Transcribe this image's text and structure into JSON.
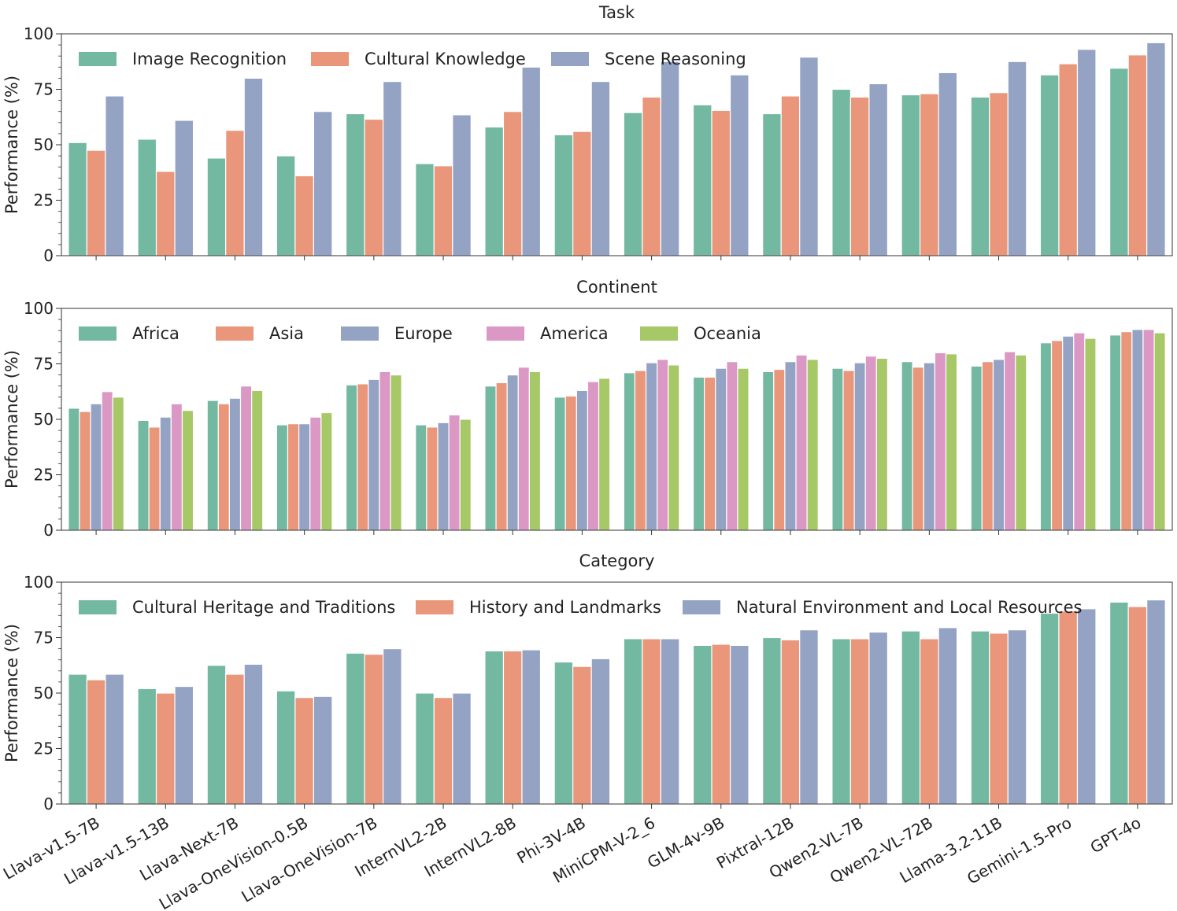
{
  "figure": {
    "models": [
      "Llava-v1.5-7B",
      "Llava-v1.5-13B",
      "Llava-Next-7B",
      "Llava-OneVision-0.5B",
      "Llava-OneVision-7B",
      "InternVL2-2B",
      "InternVL2-8B",
      "Phi-3V-4B",
      "MiniCPM-V-2_6",
      "GLM-4v-9B",
      "Pixtral-12B",
      "Qwen2-VL-7B",
      "Qwen2-VL-72B",
      "Llama-3.2-11B",
      "Gemini-1.5-Pro",
      "GPT-4o"
    ]
  },
  "chart_data": [
    {
      "type": "bar",
      "title": "Task",
      "xlabel": "",
      "ylabel": "Performance (%)",
      "ylim": [
        0,
        100
      ],
      "yticks": [
        0,
        25,
        50,
        75,
        100
      ],
      "legend_position": "top-left",
      "categories": [
        "Llava-v1.5-7B",
        "Llava-v1.5-13B",
        "Llava-Next-7B",
        "Llava-OneVision-0.5B",
        "Llava-OneVision-7B",
        "InternVL2-2B",
        "InternVL2-8B",
        "Phi-3V-4B",
        "MiniCPM-V-2_6",
        "GLM-4v-9B",
        "Pixtral-12B",
        "Qwen2-VL-7B",
        "Qwen2-VL-72B",
        "Llama-3.2-11B",
        "Gemini-1.5-Pro",
        "GPT-4o"
      ],
      "series": [
        {
          "name": "Image Recognition",
          "color": "#73b8a0",
          "values": [
            51,
            52.5,
            44,
            45,
            64,
            41.5,
            58,
            54.5,
            64.5,
            68,
            64,
            75,
            72.5,
            71.5,
            81.5,
            84.5
          ]
        },
        {
          "name": "Cultural Knowledge",
          "color": "#e9967a",
          "values": [
            47.5,
            38,
            56.5,
            36,
            61.5,
            40.5,
            65,
            56,
            71.5,
            65.5,
            72,
            71.5,
            73,
            73.5,
            86.5,
            90.5
          ]
        },
        {
          "name": "Scene Reasoning",
          "color": "#94a3c4",
          "values": [
            72,
            61,
            80,
            65,
            78.5,
            63.5,
            85,
            78.5,
            87.5,
            81.5,
            89.5,
            77.5,
            82.5,
            87.5,
            93,
            96
          ]
        }
      ]
    },
    {
      "type": "bar",
      "title": "Continent",
      "xlabel": "",
      "ylabel": "Performance (%)",
      "ylim": [
        0,
        100
      ],
      "yticks": [
        0,
        25,
        50,
        75,
        100
      ],
      "legend_position": "top-left",
      "categories": [
        "Llava-v1.5-7B",
        "Llava-v1.5-13B",
        "Llava-Next-7B",
        "Llava-OneVision-0.5B",
        "Llava-OneVision-7B",
        "InternVL2-2B",
        "InternVL2-8B",
        "Phi-3V-4B",
        "MiniCPM-V-2_6",
        "GLM-4v-9B",
        "Pixtral-12B",
        "Qwen2-VL-7B",
        "Qwen2-VL-72B",
        "Llama-3.2-11B",
        "Gemini-1.5-Pro",
        "GPT-4o"
      ],
      "series": [
        {
          "name": "Africa",
          "color": "#73b8a0",
          "values": [
            55,
            49.5,
            58.5,
            47.5,
            65.5,
            47.5,
            65,
            60,
            71,
            69,
            71.5,
            73,
            76,
            74,
            84.5,
            88
          ]
        },
        {
          "name": "Asia",
          "color": "#e9967a",
          "values": [
            53.5,
            46.5,
            57,
            48,
            66,
            46.5,
            66.5,
            60.5,
            72,
            69,
            72.5,
            72,
            73.5,
            76,
            85.5,
            89.5
          ]
        },
        {
          "name": "Europe",
          "color": "#94a3c4",
          "values": [
            57,
            51,
            59.5,
            48,
            68,
            48.5,
            70,
            63,
            75.5,
            73,
            76,
            75.5,
            75.5,
            77,
            87.5,
            90.5
          ]
        },
        {
          "name": "America",
          "color": "#dc98c5",
          "values": [
            62.5,
            57,
            65,
            51,
            71.5,
            52,
            73.5,
            67,
            77,
            76,
            79,
            78.5,
            80,
            80.5,
            89,
            90.5
          ]
        },
        {
          "name": "Oceania",
          "color": "#a6c867",
          "values": [
            60,
            54,
            63,
            53,
            70,
            50,
            71.5,
            68.5,
            74.5,
            73,
            77,
            77.5,
            79.5,
            79,
            86.5,
            89
          ]
        }
      ]
    },
    {
      "type": "bar",
      "title": "Category",
      "xlabel": "",
      "ylabel": "Performance (%)",
      "ylim": [
        0,
        100
      ],
      "yticks": [
        0,
        25,
        50,
        75,
        100
      ],
      "legend_position": "top-left",
      "categories": [
        "Llava-v1.5-7B",
        "Llava-v1.5-13B",
        "Llava-Next-7B",
        "Llava-OneVision-0.5B",
        "Llava-OneVision-7B",
        "InternVL2-2B",
        "InternVL2-8B",
        "Phi-3V-4B",
        "MiniCPM-V-2_6",
        "GLM-4v-9B",
        "Pixtral-12B",
        "Qwen2-VL-7B",
        "Qwen2-VL-72B",
        "Llama-3.2-11B",
        "Gemini-1.5-Pro",
        "GPT-4o"
      ],
      "series": [
        {
          "name": "Cultural Heritage and Traditions",
          "color": "#73b8a0",
          "values": [
            58.5,
            52,
            62.5,
            51,
            68,
            50,
            69,
            64,
            74.5,
            71.5,
            75,
            74.5,
            78,
            78,
            86,
            91
          ]
        },
        {
          "name": "History and Landmarks",
          "color": "#e9967a",
          "values": [
            56,
            50,
            58.5,
            48,
            67.5,
            48,
            69,
            62,
            74.5,
            72,
            74,
            74.5,
            74.5,
            77,
            87,
            89
          ]
        },
        {
          "name": "Natural Environment and Local Resources",
          "color": "#94a3c4",
          "values": [
            58.5,
            53,
            63,
            48.5,
            70,
            50,
            69.5,
            65.5,
            74.5,
            71.5,
            78.5,
            77.5,
            79.5,
            78.5,
            88,
            92
          ]
        }
      ]
    }
  ]
}
